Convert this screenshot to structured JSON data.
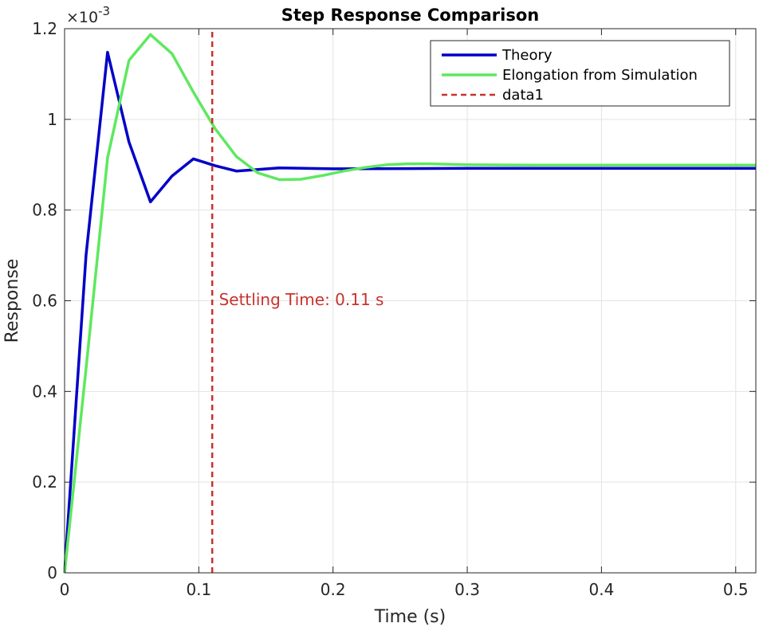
{
  "chart_data": {
    "type": "line",
    "title": "Step Response Comparison",
    "xlabel": "Time (s)",
    "ylabel": "Response",
    "xlim": [
      0,
      0.515
    ],
    "ylim": [
      0,
      1.2
    ],
    "y_scale_label": "×10",
    "y_scale_exponent": "-3",
    "x_ticks": [
      0,
      0.1,
      0.2,
      0.3,
      0.4,
      0.5
    ],
    "x_tick_labels": [
      "0",
      "0.1",
      "0.2",
      "0.3",
      "0.4",
      "0.5"
    ],
    "y_ticks": [
      0,
      0.2,
      0.4,
      0.6,
      0.8,
      1.0,
      1.2
    ],
    "y_tick_labels": [
      "0",
      "0.2",
      "0.4",
      "0.6",
      "0.8",
      "1",
      "1.2"
    ],
    "grid": true,
    "legend_position": "top-right",
    "series": [
      {
        "name": "Theory",
        "color": "#0000c8",
        "style": "solid",
        "x": [
          0,
          0.016,
          0.032,
          0.048,
          0.064,
          0.08,
          0.096,
          0.112,
          0.128,
          0.16,
          0.2,
          0.3,
          0.4,
          0.515
        ],
        "y": [
          0,
          0.7,
          1.148,
          0.95,
          0.818,
          0.875,
          0.913,
          0.898,
          0.886,
          0.893,
          0.891,
          0.892,
          0.892,
          0.892
        ]
      },
      {
        "name": "Elongation from Simulation",
        "color": "#5fe85f",
        "style": "solid",
        "x": [
          0,
          0.016,
          0.032,
          0.048,
          0.064,
          0.08,
          0.096,
          0.112,
          0.128,
          0.144,
          0.16,
          0.176,
          0.192,
          0.208,
          0.224,
          0.24,
          0.256,
          0.272,
          0.3,
          0.35,
          0.4,
          0.515
        ],
        "y": [
          0,
          0.45,
          0.915,
          1.13,
          1.187,
          1.145,
          1.06,
          0.98,
          0.918,
          0.882,
          0.867,
          0.868,
          0.876,
          0.886,
          0.894,
          0.9,
          0.902,
          0.902,
          0.9,
          0.899,
          0.899,
          0.899
        ]
      },
      {
        "name": "data1",
        "color": "#c8322d",
        "style": "dashed",
        "x": [
          0.11,
          0.11
        ],
        "y": [
          0,
          1.2
        ]
      }
    ],
    "annotations": [
      {
        "text": "Settling Time: 0.11 s",
        "x": 0.115,
        "y": 0.59,
        "color": "#c8322d"
      }
    ]
  }
}
